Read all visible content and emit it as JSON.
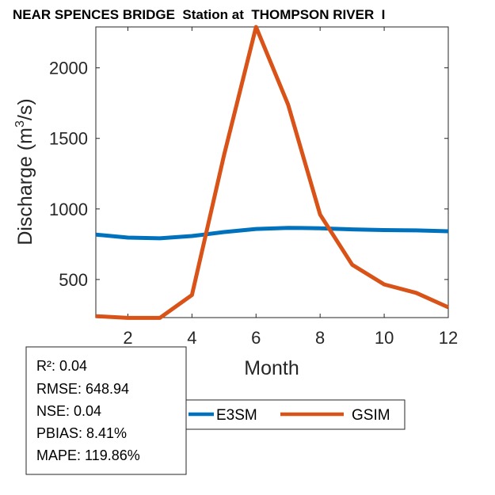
{
  "chart_data": {
    "type": "line",
    "title": "NEAR SPENCES BRIDGE  Station at  THOMPSON RIVER  I",
    "xlabel": "Month",
    "ylabel": "Discharge (m",
    "ylabel_sup": "3",
    "ylabel_suffix": "/s)",
    "xlim": [
      1,
      12
    ],
    "ylim": [
      230,
      2290
    ],
    "x_ticks": [
      2,
      4,
      6,
      8,
      10,
      12
    ],
    "x_tick_labels": [
      "2",
      "4",
      "6",
      "8",
      "10",
      "12"
    ],
    "y_ticks": [
      500,
      1000,
      1500,
      2000
    ],
    "y_tick_labels": [
      "500",
      "1000",
      "1500",
      "2000"
    ],
    "grid": false,
    "legend_placement": "bottom",
    "x": [
      1,
      2,
      3,
      4,
      5,
      6,
      7,
      8,
      9,
      10,
      11,
      12
    ],
    "series": [
      {
        "name": "E3SM",
        "color": "#0072BD",
        "values": [
          818,
          797,
          792,
          808,
          836,
          858,
          866,
          863,
          855,
          850,
          848,
          842
        ]
      },
      {
        "name": "GSIM",
        "color": "#D95319",
        "values": [
          240,
          228,
          228,
          390,
          1380,
          2290,
          1740,
          960,
          605,
          465,
          405,
          303
        ]
      }
    ]
  },
  "stats": [
    "R²: 0.04",
    "RMSE: 648.94",
    "NSE: 0.04",
    "PBIAS: 8.41%",
    "MAPE: 119.86%"
  ]
}
